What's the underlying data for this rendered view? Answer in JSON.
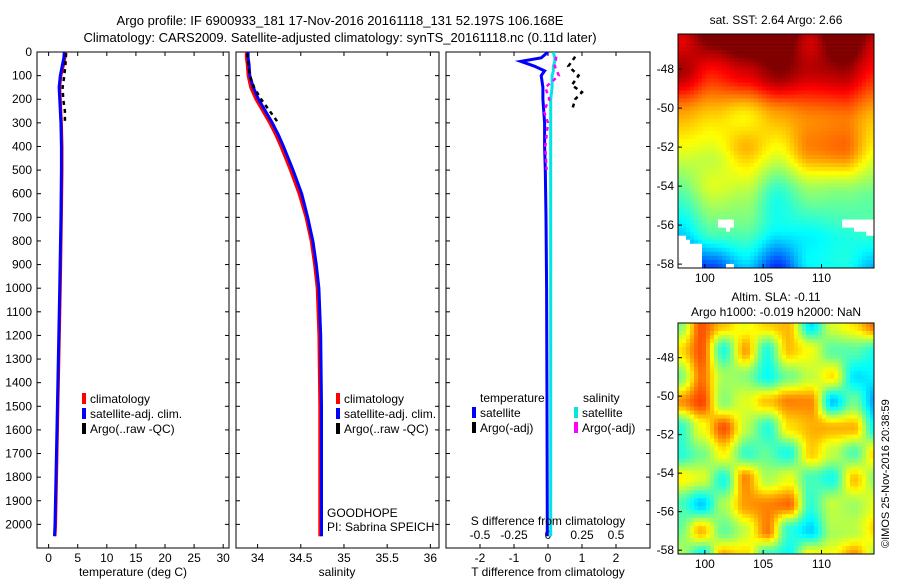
{
  "header": {
    "line1": "Argo profile: IF 6900933_181 17-Nov-2016 20161118_131 52.197S 106.168E",
    "line2": "Climatology: CARS2009. Satellite-adjusted climatology: synTS_20161118.nc (0.11d later)"
  },
  "colors": {
    "climatology": "#ff0000",
    "satellite": "#0000ff",
    "argo": "#000000",
    "sat_salinity": "#00e5e5",
    "argo_adj": "#ff00ff"
  },
  "chart_data": [
    {
      "type": "line",
      "name": "temperature",
      "xlabel": "temperature (deg C)",
      "xlim": [
        -2,
        31
      ],
      "xticks": [
        0,
        5,
        10,
        15,
        20,
        25,
        30
      ],
      "xtick_labels": [
        "0",
        "5",
        "10",
        "15",
        "20",
        "25",
        "30"
      ],
      "ylim": [
        0,
        2100
      ],
      "yticks": [
        0,
        100,
        200,
        300,
        400,
        500,
        600,
        700,
        800,
        900,
        1000,
        1100,
        1200,
        1300,
        1400,
        1500,
        1600,
        1700,
        1800,
        1900,
        2000
      ],
      "depth": [
        0,
        25,
        50,
        100,
        150,
        200,
        300,
        400,
        500,
        700,
        1000,
        1500,
        2000,
        2050
      ],
      "series": [
        {
          "name": "climatology",
          "color": "#ff0000",
          "values": [
            2.9,
            2.8,
            2.6,
            2.1,
            1.9,
            2.0,
            2.2,
            2.3,
            2.3,
            2.2,
            2.0,
            1.6,
            1.2,
            1.1
          ]
        },
        {
          "name": "satellite-adj. clim.",
          "color": "#0000ff",
          "values": [
            2.7,
            2.6,
            2.4,
            2.0,
            1.8,
            1.9,
            2.1,
            2.2,
            2.2,
            2.1,
            1.9,
            1.5,
            1.1,
            1.0
          ]
        },
        {
          "name": "Argo(..raw -QC)",
          "color": "#000000",
          "dashed": true,
          "depth": [
            5,
            50,
            100,
            150,
            200,
            250,
            300
          ],
          "values": [
            3.0,
            2.9,
            2.7,
            2.4,
            2.5,
            2.8,
            2.8
          ]
        }
      ],
      "legend": [
        "climatology",
        "satellite-adj. clim.",
        "Argo(..raw -QC)"
      ]
    },
    {
      "type": "line",
      "name": "salinity",
      "xlabel": "salinity",
      "xlim": [
        33.75,
        36.1
      ],
      "xticks": [
        34,
        34.5,
        35,
        35.5,
        36
      ],
      "xtick_labels": [
        "34",
        "34.5",
        "35",
        "35.5",
        "36"
      ],
      "ylim": [
        0,
        2100
      ],
      "depth": [
        0,
        25,
        50,
        100,
        150,
        200,
        250,
        300,
        350,
        400,
        500,
        600,
        700,
        800,
        900,
        1000,
        1200,
        1500,
        2000,
        2050
      ],
      "series": [
        {
          "name": "climatology",
          "color": "#ff0000",
          "values": [
            33.87,
            33.87,
            33.88,
            33.89,
            33.92,
            33.98,
            34.06,
            34.14,
            34.21,
            34.27,
            34.38,
            34.48,
            34.56,
            34.62,
            34.66,
            34.69,
            34.71,
            34.72,
            34.72,
            34.72
          ]
        },
        {
          "name": "satellite-adj. clim.",
          "color": "#0000ff",
          "values": [
            33.89,
            33.89,
            33.9,
            33.91,
            33.95,
            34.01,
            34.09,
            34.17,
            34.24,
            34.3,
            34.41,
            34.51,
            34.58,
            34.64,
            34.68,
            34.71,
            34.73,
            34.74,
            34.74,
            34.74
          ]
        },
        {
          "name": "Argo(..raw -QC)",
          "color": "#000000",
          "dashed": true,
          "depth": [
            5,
            50,
            100,
            150,
            200,
            250,
            300
          ],
          "values": [
            33.88,
            33.89,
            33.91,
            33.96,
            34.04,
            34.14,
            34.24
          ]
        }
      ],
      "legend": [
        "climatology",
        "satellite-adj. clim.",
        "Argo(..raw -QC)"
      ],
      "annotation": [
        "GOODHOPE",
        "PI: Sabrina SPEICH"
      ]
    },
    {
      "type": "line",
      "name": "differences",
      "xlabel": "T difference from climatology",
      "xlim": [
        -3,
        3
      ],
      "xticks": [
        -2,
        -1,
        0,
        1,
        2
      ],
      "xtick_labels": [
        "-2",
        "-1",
        "0",
        "1",
        "2"
      ],
      "top_axis_label": "S difference from climatology",
      "top_ticks": [
        -0.5,
        -0.25,
        0,
        0.25,
        0.5
      ],
      "top_tick_labels": [
        "-0.5",
        "-0.25",
        "0",
        "0.25",
        "0.5"
      ],
      "ylim": [
        0,
        2100
      ],
      "depth": [
        0,
        25,
        40,
        60,
        80,
        100,
        150,
        200,
        300,
        400,
        500,
        700,
        1000,
        1500,
        2000,
        2050
      ],
      "series": [
        {
          "name": "temperature satellite",
          "color": "#0000ff",
          "values": [
            0.0,
            -0.2,
            -0.8,
            -0.4,
            -0.1,
            -0.2,
            -0.15,
            -0.15,
            -0.1,
            -0.1,
            -0.08,
            -0.06,
            -0.04,
            -0.03,
            -0.02,
            -0.02
          ]
        },
        {
          "name": "temperature Argo(-adj)",
          "color": "#000000",
          "dashed": true,
          "depth": [
            20,
            60,
            100,
            140,
            170,
            200,
            250
          ],
          "values": [
            0.8,
            0.6,
            0.9,
            0.7,
            1.0,
            0.8,
            0.7
          ]
        },
        {
          "name": "salinity satellite",
          "color": "#00e5e5",
          "values": [
            0.04,
            0.05,
            0.05,
            0.04,
            0.04,
            0.03,
            0.03,
            0.02,
            0.02,
            0.02,
            0.02,
            0.02,
            0.02,
            0.02,
            0.02,
            0.02
          ]
        },
        {
          "name": "salinity Argo(-adj)",
          "color": "#ff00ff",
          "dashed": true,
          "depth": [
            20,
            60,
            100,
            150,
            200,
            250,
            300,
            400,
            500
          ],
          "values": [
            0.06,
            0.05,
            0.08,
            -0.02,
            0.01,
            -0.03,
            0.0,
            -0.02,
            -0.01
          ]
        }
      ],
      "legend_headers": [
        "temperature",
        "salinity"
      ],
      "legend": [
        "satellite",
        "Argo(-adj)",
        "satellite",
        "Argo(-adj)"
      ]
    },
    {
      "type": "heatmap",
      "name": "SST map",
      "title": "sat. SST: 2.64 Argo: 2.66",
      "xticks": [
        100,
        105,
        110
      ],
      "xtick_labels": [
        "100",
        "105",
        "110"
      ],
      "xlim": [
        97.7,
        114.5
      ],
      "yticks": [
        -48,
        -50,
        -52,
        -54,
        -56,
        -58
      ],
      "ytick_labels": [
        "-48",
        "-50",
        "-52",
        "-54",
        "-56",
        "-58"
      ],
      "ylim": [
        -58.2,
        -46.2
      ]
    },
    {
      "type": "heatmap",
      "name": "SLA map",
      "title_lines": [
        "Altim. SLA: -0.11",
        "Argo h1000: -0.019 h2000: NaN"
      ],
      "xticks": [
        100,
        105,
        110
      ],
      "xtick_labels": [
        "100",
        "105",
        "110"
      ],
      "xlim": [
        97.7,
        114.5
      ],
      "yticks": [
        -48,
        -50,
        -52,
        -54,
        -56,
        -58
      ],
      "ytick_labels": [
        "-48",
        "-50",
        "-52",
        "-54",
        "-56",
        "-58"
      ],
      "ylim": [
        -58.2,
        -46.2
      ]
    }
  ],
  "timestamp": "©IMOS 25-Nov-2016 20:38:59"
}
